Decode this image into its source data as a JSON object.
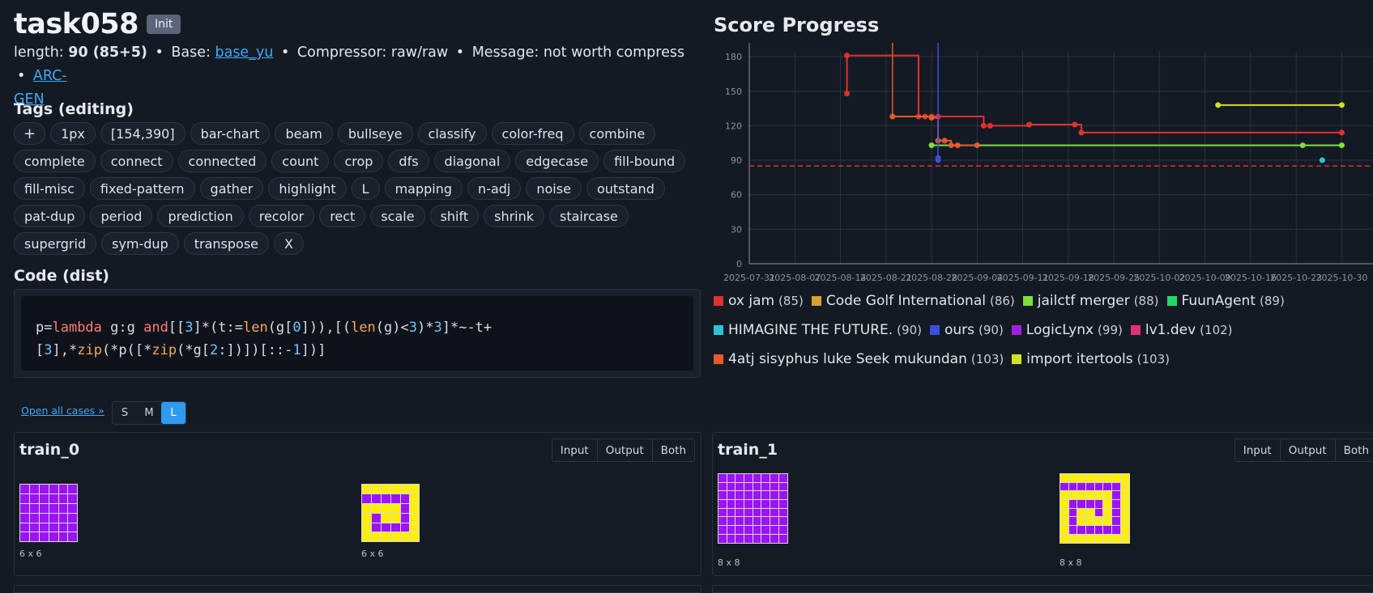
{
  "header": {
    "title": "task058",
    "badge": "Init",
    "length_label": "length:",
    "length_value": "90 (85+5)",
    "base_label": "Base:",
    "base_link": "base_yu",
    "compressor": "Compressor: raw/raw",
    "message": "Message: not worth compress",
    "arcgen_link_1": "ARC-",
    "arcgen_link_2": "GEN",
    "separator": "•"
  },
  "tags": {
    "heading": "Tags (editing)",
    "add": "+",
    "items": [
      "1px",
      "[154,390]",
      "bar-chart",
      "beam",
      "bullseye",
      "classify",
      "color-freq",
      "combine",
      "complete",
      "connect",
      "connected",
      "count",
      "crop",
      "dfs",
      "diagonal",
      "edgecase",
      "fill-bound",
      "fill-misc",
      "fixed-pattern",
      "gather",
      "highlight",
      "L",
      "mapping",
      "n-adj",
      "noise",
      "outstand",
      "pat-dup",
      "period",
      "prediction",
      "recolor",
      "rect",
      "scale",
      "shift",
      "shrink",
      "staircase",
      "supergrid",
      "sym-dup",
      "transpose",
      "X"
    ]
  },
  "code": {
    "heading": "Code (dist)",
    "line1": "p=lambda g:g and[[3]*(t:=len(g[0])),[(len(g)<3)*3]*~-t+",
    "line2": "[3],*zip(*p([*zip(*g[2:])])[::-1])]"
  },
  "controls": {
    "open_all": "Open all cases »",
    "sizes": [
      "S",
      "M",
      "L"
    ],
    "active_size": "L"
  },
  "cases": [
    {
      "title": "train_0",
      "buttons": [
        "Input",
        "Output",
        "Both"
      ],
      "input_dim": "6 x 6",
      "output_dim": "6 x 6",
      "input": [
        "PPPPPP",
        "PPPPPP",
        "PPPPPP",
        "PPPPPP",
        "PPPPPP",
        "PPPPPP"
      ],
      "output": [
        "YYYYYY",
        "PPPPPY",
        "YYYYPY",
        "YPYYPY",
        "YPPPPY",
        "YYYYYY"
      ]
    },
    {
      "title": "train_1",
      "buttons": [
        "Input",
        "Output",
        "Both"
      ],
      "input_dim": "8 x 8",
      "output_dim": "8 x 8",
      "input": [
        "PPPPPPPP",
        "PPPPPPPP",
        "PPPPPPPP",
        "PPPPPPPP",
        "PPPPPPPP",
        "PPPPPPPP",
        "PPPPPPPP",
        "PPPPPPPP"
      ],
      "output": [
        "YYYYYYYY",
        "PPPPPPPY",
        "YYYYYYPY",
        "YPPPPYPY",
        "YPYYPYPY",
        "YPYYYYPY",
        "YPPPPPPY",
        "YYYYYYYY"
      ]
    }
  ],
  "palette": {
    "P": "#9b14f5",
    "Y": "#ffef00"
  },
  "chart": {
    "heading": "Score Progress",
    "x_ticks": [
      "2025-07-31",
      "2025-08-07",
      "2025-08-14",
      "2025-08-21",
      "2025-08-28",
      "2025-09-04",
      "2025-09-11",
      "2025-09-18",
      "2025-09-25",
      "2025-10-02",
      "2025-10-09",
      "2025-10-16",
      "2025-10-23",
      "2025-10-30"
    ],
    "y_ticks": [
      "0",
      "30",
      "60",
      "90",
      "120",
      "150",
      "180"
    ],
    "colors": {
      "axis": "#8a93a1",
      "grid": "#2b3340",
      "target": "#e03131"
    }
  },
  "chart_data": {
    "type": "line",
    "title": "Score Progress",
    "ylim": [
      0,
      185
    ],
    "x_range": [
      "2025-07-31",
      "2025-10-30"
    ],
    "target_line": 85,
    "series": [
      {
        "name": "ox jam",
        "score": 85,
        "color": "#e03131",
        "points": [
          [
            "2025-08-15",
            148
          ],
          [
            "2025-08-15",
            181
          ],
          [
            "2025-08-26",
            128
          ],
          [
            "2025-08-27",
            128
          ],
          [
            "2025-08-28",
            128
          ],
          [
            "2025-08-29",
            128
          ],
          [
            "2025-09-05",
            120
          ],
          [
            "2025-09-06",
            120
          ],
          [
            "2025-09-12",
            121
          ],
          [
            "2025-09-19",
            121
          ],
          [
            "2025-09-20",
            114
          ],
          [
            "2025-10-30",
            114
          ]
        ]
      },
      {
        "name": "Code Golf International",
        "score": 86,
        "color": "#d8a12a",
        "points": []
      },
      {
        "name": "jailctf merger",
        "score": 88,
        "color": "#7be23c",
        "points": [
          [
            "2025-08-28",
            103
          ],
          [
            "2025-10-24",
            103
          ],
          [
            "2025-10-30",
            103
          ]
        ]
      },
      {
        "name": "FuunAgent",
        "score": 89,
        "color": "#22d86b",
        "points": []
      },
      {
        "name": "HIMAGINE THE FUTURE.",
        "score": 90,
        "color": "#2bc4d6",
        "points": [
          [
            "2025-10-27",
            90
          ]
        ]
      },
      {
        "name": "ours",
        "score": 90,
        "color": "#3a4fe0",
        "points": [
          [
            "2025-08-29",
            92
          ],
          [
            "2025-08-29",
            90
          ]
        ]
      },
      {
        "name": "LogicLynx",
        "score": 99,
        "color": "#a020e0",
        "points": []
      },
      {
        "name": "lv1.dev",
        "score": 102,
        "color": "#e0307a",
        "points": []
      },
      {
        "name": "4atj sisyphus luke Seek mukundan",
        "score": 103,
        "color": "#e85a2a",
        "points": [
          [
            "2025-08-22",
            128
          ],
          [
            "2025-08-28",
            127
          ],
          [
            "2025-08-29",
            107
          ],
          [
            "2025-08-30",
            107
          ],
          [
            "2025-08-31",
            103
          ],
          [
            "2025-09-01",
            103
          ],
          [
            "2025-09-04",
            103
          ]
        ]
      },
      {
        "name": "import itertools",
        "score": 103,
        "color": "#d4e024",
        "points": [
          [
            "2025-10-11",
            138
          ],
          [
            "2025-10-30",
            138
          ]
        ]
      }
    ]
  }
}
